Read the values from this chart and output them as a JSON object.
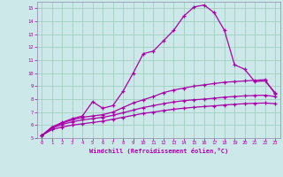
{
  "xlabel": "Windchill (Refroidissement éolien,°C)",
  "bg_color": "#cce8e8",
  "line_color": "#aa00aa",
  "xlim": [
    -0.5,
    23.5
  ],
  "ylim": [
    5,
    15.5
  ],
  "xticks": [
    0,
    1,
    2,
    3,
    4,
    5,
    6,
    7,
    8,
    9,
    10,
    11,
    12,
    13,
    14,
    15,
    16,
    17,
    18,
    19,
    20,
    21,
    22,
    23
  ],
  "yticks": [
    5,
    6,
    7,
    8,
    9,
    10,
    11,
    12,
    13,
    14,
    15
  ],
  "line1_x": [
    0,
    1,
    2,
    3,
    4,
    5,
    6,
    7,
    8,
    9,
    10,
    11,
    12,
    13,
    14,
    15,
    16,
    17,
    18,
    19,
    20,
    21,
    22,
    23
  ],
  "line1_y": [
    5.2,
    5.85,
    6.2,
    6.5,
    6.7,
    7.8,
    7.3,
    7.5,
    8.6,
    10.0,
    11.5,
    11.7,
    12.5,
    13.3,
    14.4,
    15.1,
    15.25,
    14.65,
    13.3,
    10.65,
    10.3,
    9.35,
    9.4,
    8.5
  ],
  "line2_x": [
    0,
    1,
    2,
    3,
    4,
    5,
    6,
    7,
    8,
    9,
    10,
    11,
    12,
    13,
    14,
    15,
    16,
    17,
    18,
    19,
    20,
    21,
    22,
    23
  ],
  "line2_y": [
    5.2,
    5.85,
    6.15,
    6.4,
    6.6,
    6.7,
    6.8,
    7.0,
    7.35,
    7.7,
    7.95,
    8.2,
    8.5,
    8.7,
    8.85,
    9.0,
    9.1,
    9.2,
    9.3,
    9.35,
    9.4,
    9.45,
    9.5,
    8.4
  ],
  "line3_x": [
    0,
    1,
    2,
    3,
    4,
    5,
    6,
    7,
    8,
    9,
    10,
    11,
    12,
    13,
    14,
    15,
    16,
    17,
    18,
    19,
    20,
    21,
    22,
    23
  ],
  "line3_y": [
    5.2,
    5.75,
    6.05,
    6.25,
    6.4,
    6.5,
    6.6,
    6.75,
    6.95,
    7.15,
    7.35,
    7.5,
    7.65,
    7.78,
    7.88,
    7.95,
    8.0,
    8.07,
    8.15,
    8.2,
    8.25,
    8.28,
    8.3,
    8.2
  ],
  "line4_x": [
    0,
    1,
    2,
    3,
    4,
    5,
    6,
    7,
    8,
    9,
    10,
    11,
    12,
    13,
    14,
    15,
    16,
    17,
    18,
    19,
    20,
    21,
    22,
    23
  ],
  "line4_y": [
    5.2,
    5.65,
    5.85,
    6.0,
    6.1,
    6.2,
    6.3,
    6.45,
    6.6,
    6.75,
    6.9,
    7.0,
    7.12,
    7.22,
    7.3,
    7.37,
    7.43,
    7.48,
    7.55,
    7.6,
    7.65,
    7.68,
    7.7,
    7.65
  ]
}
